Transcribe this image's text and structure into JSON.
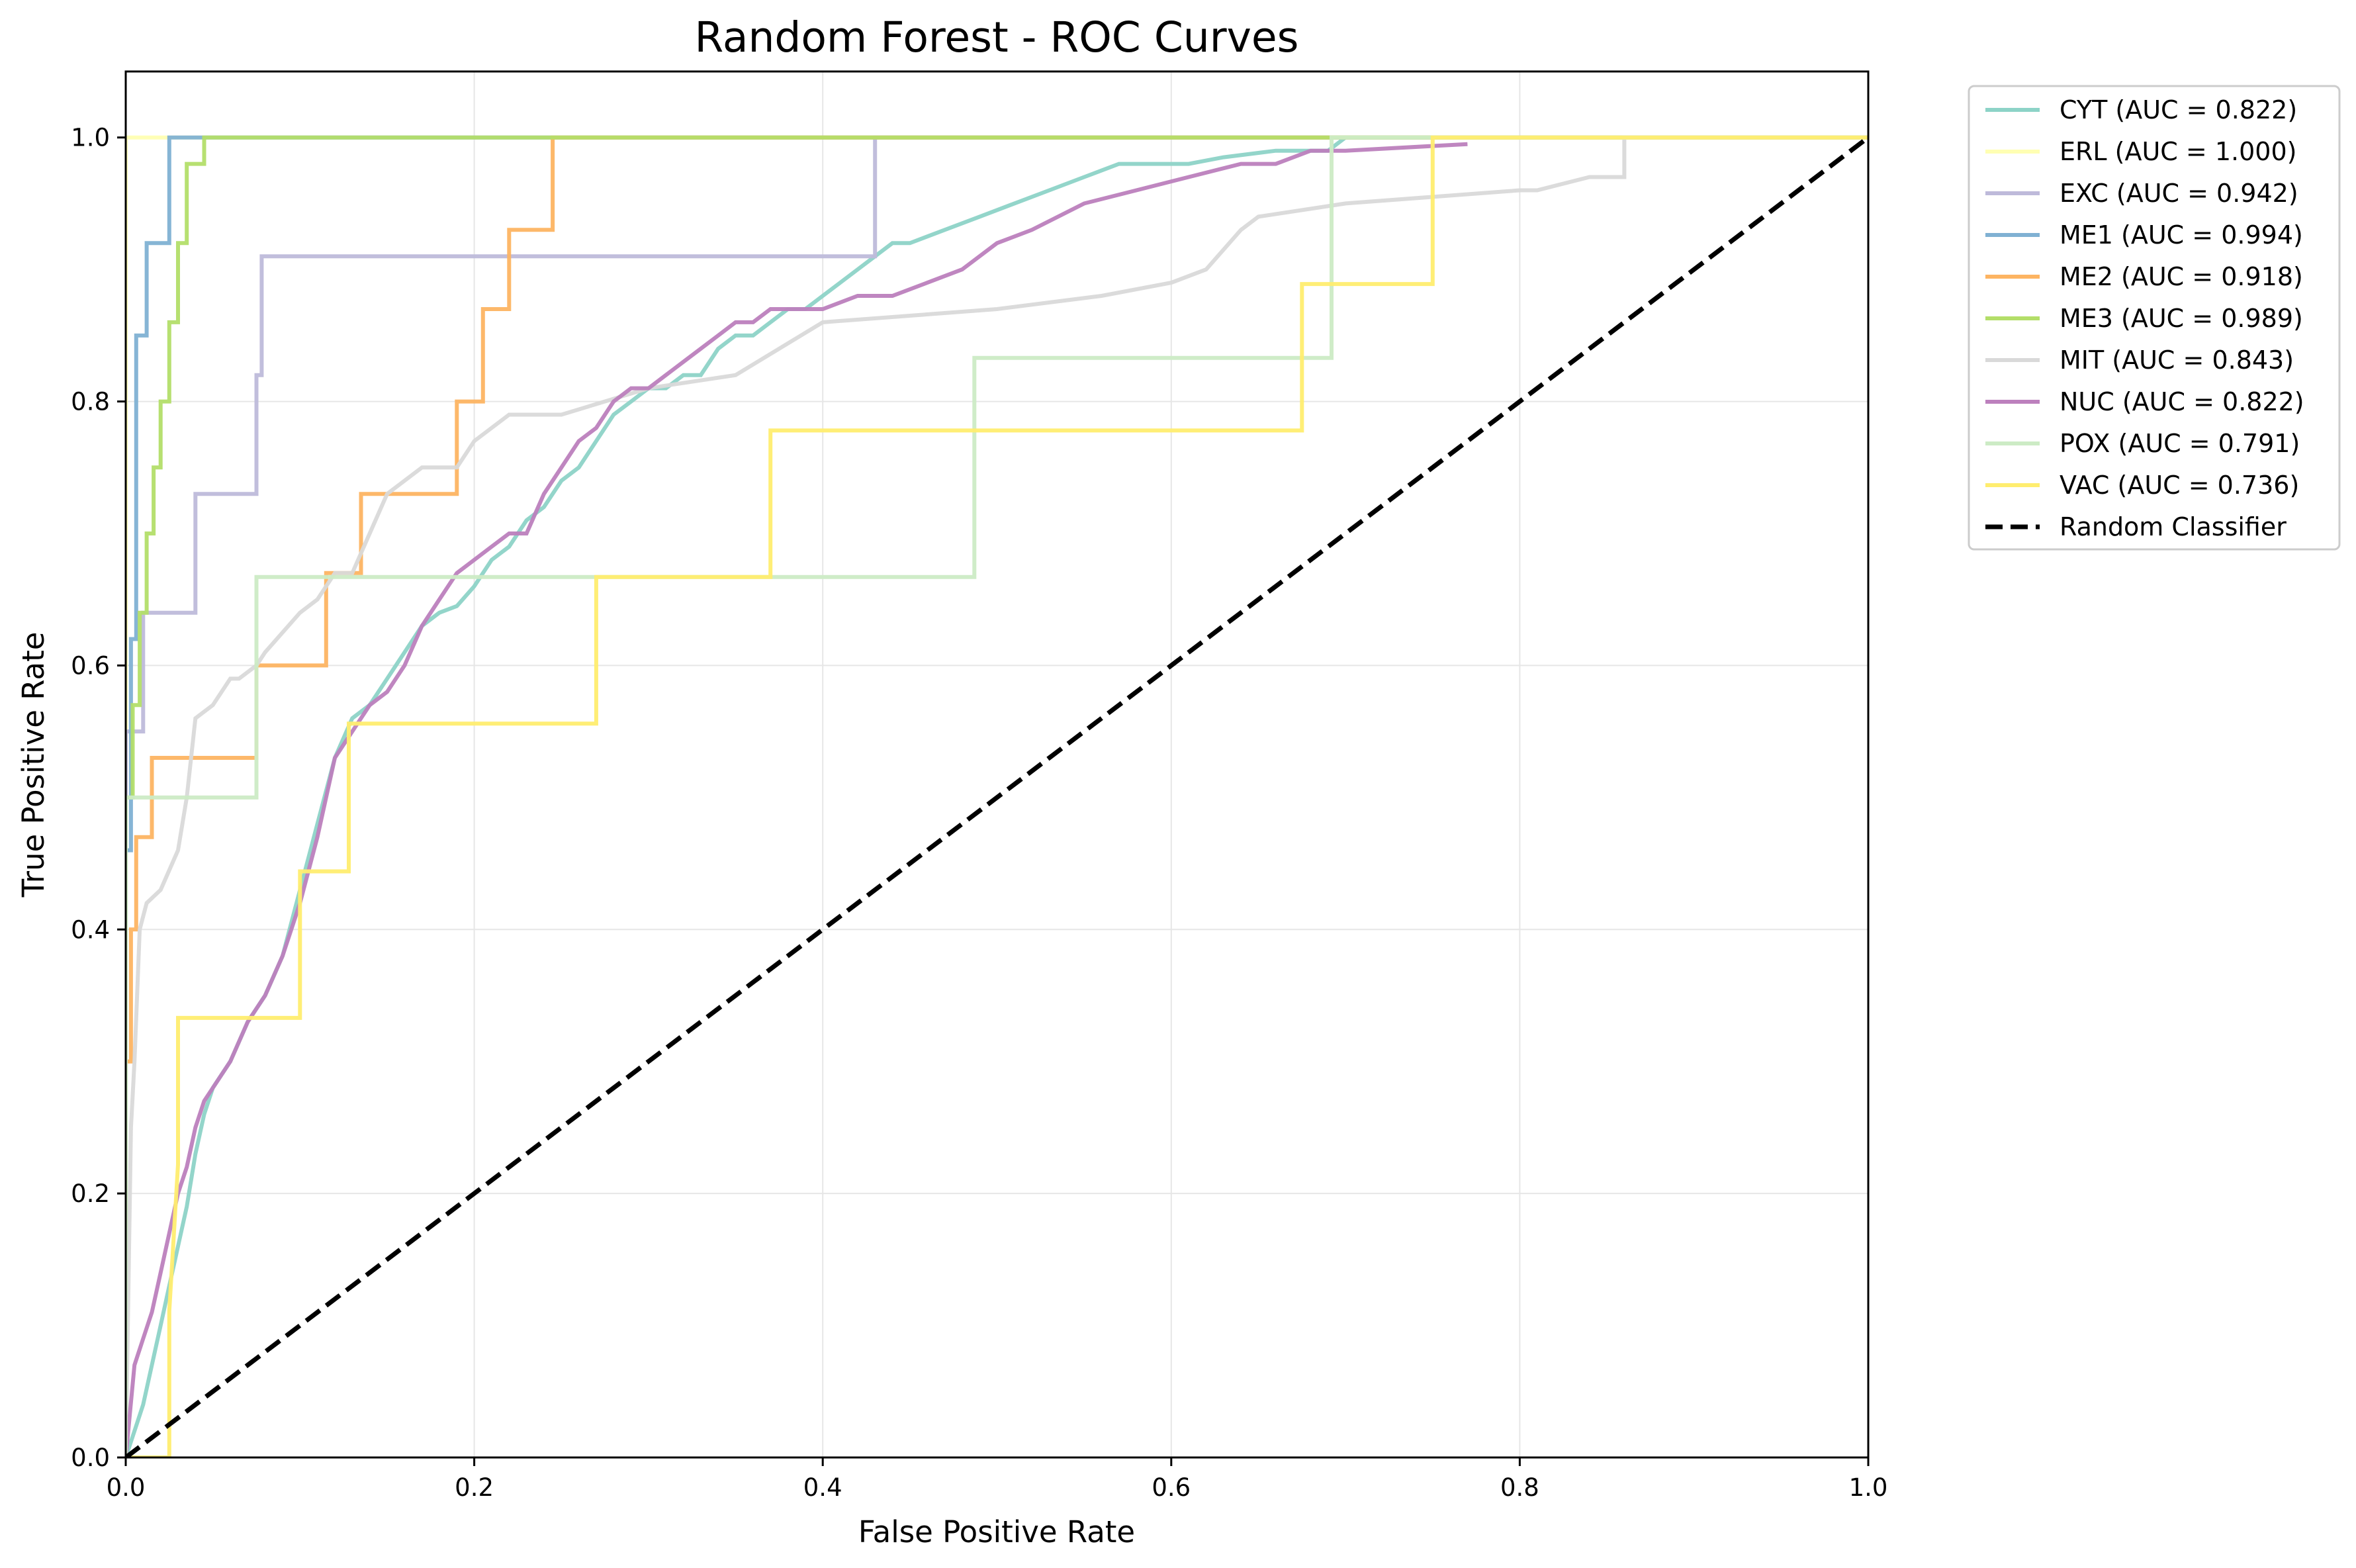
{
  "chart_data": {
    "type": "line",
    "title": "Random Forest - ROC Curves",
    "xlabel": "False Positive Rate",
    "ylabel": "True Positive Rate",
    "xlim": [
      0.0,
      1.0
    ],
    "ylim": [
      0.0,
      1.05
    ],
    "xticks": [
      "0.0",
      "0.2",
      "0.4",
      "0.6",
      "0.8",
      "1.0"
    ],
    "yticks": [
      "0.0",
      "0.2",
      "0.4",
      "0.6",
      "0.8",
      "1.0"
    ],
    "grid": true,
    "legend_position": "outside-top-right",
    "series": [
      {
        "name": "CYT (AUC = 0.822)",
        "color": "#8dd3c7",
        "x": [
          0,
          0.005,
          0.01,
          0.015,
          0.02,
          0.025,
          0.03,
          0.035,
          0.04,
          0.045,
          0.05,
          0.06,
          0.07,
          0.08,
          0.09,
          0.1,
          0.11,
          0.12,
          0.13,
          0.14,
          0.15,
          0.16,
          0.17,
          0.18,
          0.19,
          0.2,
          0.21,
          0.22,
          0.23,
          0.24,
          0.25,
          0.26,
          0.27,
          0.28,
          0.29,
          0.3,
          0.31,
          0.32,
          0.33,
          0.34,
          0.35,
          0.36,
          0.37,
          0.38,
          0.39,
          0.4,
          0.41,
          0.42,
          0.43,
          0.44,
          0.45,
          0.47,
          0.49,
          0.51,
          0.53,
          0.55,
          0.57,
          0.59,
          0.61,
          0.63,
          0.66,
          0.69,
          0.7,
          1.0
        ],
        "y": [
          0,
          0.02,
          0.04,
          0.07,
          0.1,
          0.13,
          0.16,
          0.19,
          0.23,
          0.26,
          0.28,
          0.3,
          0.33,
          0.35,
          0.38,
          0.43,
          0.48,
          0.53,
          0.56,
          0.57,
          0.59,
          0.61,
          0.63,
          0.64,
          0.645,
          0.66,
          0.68,
          0.69,
          0.71,
          0.72,
          0.74,
          0.75,
          0.77,
          0.79,
          0.8,
          0.81,
          0.81,
          0.82,
          0.82,
          0.84,
          0.85,
          0.85,
          0.86,
          0.87,
          0.87,
          0.88,
          0.89,
          0.9,
          0.91,
          0.92,
          0.92,
          0.93,
          0.94,
          0.95,
          0.96,
          0.97,
          0.98,
          0.98,
          0.98,
          0.985,
          0.99,
          0.99,
          1.0,
          1.0
        ]
      },
      {
        "name": "ERL (AUC = 1.000)",
        "color": "#ffffb3",
        "x": [
          0,
          0,
          1.0
        ],
        "y": [
          0,
          1.0,
          1.0
        ]
      },
      {
        "name": "EXC (AUC = 0.942)",
        "color": "#bebada",
        "x": [
          0,
          0,
          0.01,
          0.01,
          0.04,
          0.04,
          0.075,
          0.075,
          0.078,
          0.078,
          0.43,
          0.43,
          1.0
        ],
        "y": [
          0,
          0.55,
          0.55,
          0.64,
          0.64,
          0.73,
          0.73,
          0.82,
          0.82,
          0.91,
          0.91,
          1.0,
          1.0
        ]
      },
      {
        "name": "ME1 (AUC = 0.994)",
        "color": "#80b1d3",
        "x": [
          0,
          0,
          0.003,
          0.003,
          0.006,
          0.006,
          0.012,
          0.012,
          0.025,
          0.025,
          0.045,
          1.0
        ],
        "y": [
          0,
          0.46,
          0.46,
          0.62,
          0.62,
          0.85,
          0.85,
          0.92,
          0.92,
          1.0,
          1.0,
          1.0
        ]
      },
      {
        "name": "ME2 (AUC = 0.918)",
        "color": "#fdb462",
        "x": [
          0,
          0,
          0.003,
          0.003,
          0.006,
          0.006,
          0.015,
          0.015,
          0.075,
          0.075,
          0.115,
          0.115,
          0.135,
          0.135,
          0.19,
          0.19,
          0.205,
          0.205,
          0.22,
          0.22,
          0.245,
          0.245,
          1.0
        ],
        "y": [
          0,
          0.3,
          0.3,
          0.4,
          0.4,
          0.47,
          0.47,
          0.53,
          0.53,
          0.6,
          0.6,
          0.67,
          0.67,
          0.73,
          0.73,
          0.8,
          0.8,
          0.87,
          0.87,
          0.93,
          0.93,
          1.0,
          1.0
        ]
      },
      {
        "name": "ME3 (AUC = 0.989)",
        "color": "#b3de69",
        "x": [
          0,
          0,
          0.004,
          0.004,
          0.008,
          0.008,
          0.012,
          0.012,
          0.016,
          0.016,
          0.02,
          0.02,
          0.025,
          0.025,
          0.03,
          0.03,
          0.035,
          0.035,
          0.045,
          0.045,
          1.0
        ],
        "y": [
          0,
          0.5,
          0.5,
          0.57,
          0.57,
          0.64,
          0.64,
          0.7,
          0.7,
          0.75,
          0.75,
          0.8,
          0.8,
          0.86,
          0.86,
          0.92,
          0.92,
          0.98,
          0.98,
          1.0,
          1.0
        ]
      },
      {
        "name": "MIT (AUC = 0.843)",
        "color": "#d9d9d9",
        "x": [
          0,
          0.003,
          0.005,
          0.008,
          0.012,
          0.02,
          0.03,
          0.035,
          0.04,
          0.05,
          0.06,
          0.065,
          0.075,
          0.08,
          0.1,
          0.11,
          0.12,
          0.13,
          0.14,
          0.15,
          0.17,
          0.19,
          0.2,
          0.22,
          0.23,
          0.25,
          0.3,
          0.35,
          0.4,
          0.5,
          0.56,
          0.6,
          0.62,
          0.64,
          0.65,
          0.7,
          0.8,
          0.81,
          0.84,
          0.86,
          0.86,
          1.0
        ],
        "y": [
          0,
          0.25,
          0.3,
          0.4,
          0.42,
          0.43,
          0.46,
          0.5,
          0.56,
          0.57,
          0.59,
          0.59,
          0.6,
          0.61,
          0.64,
          0.65,
          0.67,
          0.67,
          0.7,
          0.73,
          0.75,
          0.75,
          0.77,
          0.79,
          0.79,
          0.79,
          0.81,
          0.82,
          0.86,
          0.87,
          0.88,
          0.89,
          0.9,
          0.93,
          0.94,
          0.95,
          0.96,
          0.96,
          0.97,
          0.97,
          1.0,
          1.0
        ]
      },
      {
        "name": "NUC (AUC = 0.822)",
        "color": "#bc80bd",
        "x": [
          0,
          0.005,
          0.01,
          0.015,
          0.02,
          0.025,
          0.03,
          0.035,
          0.04,
          0.045,
          0.05,
          0.06,
          0.07,
          0.08,
          0.09,
          0.1,
          0.11,
          0.12,
          0.13,
          0.14,
          0.15,
          0.16,
          0.17,
          0.18,
          0.19,
          0.2,
          0.21,
          0.22,
          0.23,
          0.24,
          0.25,
          0.26,
          0.27,
          0.28,
          0.29,
          0.3,
          0.31,
          0.32,
          0.33,
          0.34,
          0.35,
          0.36,
          0.37,
          0.38,
          0.4,
          0.42,
          0.44,
          0.46,
          0.48,
          0.5,
          0.52,
          0.55,
          0.58,
          0.61,
          0.64,
          0.66,
          0.68,
          0.7,
          0.77
        ],
        "y": [
          0,
          0.07,
          0.09,
          0.11,
          0.14,
          0.17,
          0.2,
          0.22,
          0.25,
          0.27,
          0.28,
          0.3,
          0.33,
          0.35,
          0.38,
          0.42,
          0.47,
          0.53,
          0.55,
          0.57,
          0.58,
          0.6,
          0.63,
          0.65,
          0.67,
          0.68,
          0.69,
          0.7,
          0.7,
          0.73,
          0.75,
          0.77,
          0.78,
          0.8,
          0.81,
          0.81,
          0.82,
          0.83,
          0.84,
          0.85,
          0.86,
          0.86,
          0.87,
          0.87,
          0.87,
          0.88,
          0.88,
          0.89,
          0.9,
          0.92,
          0.93,
          0.95,
          0.96,
          0.97,
          0.98,
          0.98,
          0.99,
          0.99,
          0.995
        ]
      },
      {
        "name": "POX (AUC = 0.791)",
        "color": "#ccebc5",
        "x": [
          0,
          0,
          0.075,
          0.075,
          0.487,
          0.487,
          0.692,
          0.692,
          1.0
        ],
        "y": [
          0,
          0.5,
          0.5,
          0.667,
          0.667,
          0.833,
          0.833,
          1.0,
          1.0
        ]
      },
      {
        "name": "VAC (AUC = 0.736)",
        "color": "#ffed6f",
        "x": [
          0,
          0.025,
          0.025,
          0.03,
          0.03,
          0.1,
          0.1,
          0.128,
          0.128,
          0.27,
          0.27,
          0.37,
          0.37,
          0.675,
          0.675,
          0.75,
          0.75,
          1.0
        ],
        "y": [
          0,
          0,
          0.111,
          0.222,
          0.333,
          0.333,
          0.444,
          0.444,
          0.556,
          0.556,
          0.667,
          0.667,
          0.778,
          0.778,
          0.889,
          0.889,
          1.0,
          1.0
        ]
      },
      {
        "name": "Random Classifier",
        "color": "#000000",
        "dashed": true,
        "x": [
          0,
          1.0
        ],
        "y": [
          0,
          1.0
        ]
      }
    ]
  }
}
